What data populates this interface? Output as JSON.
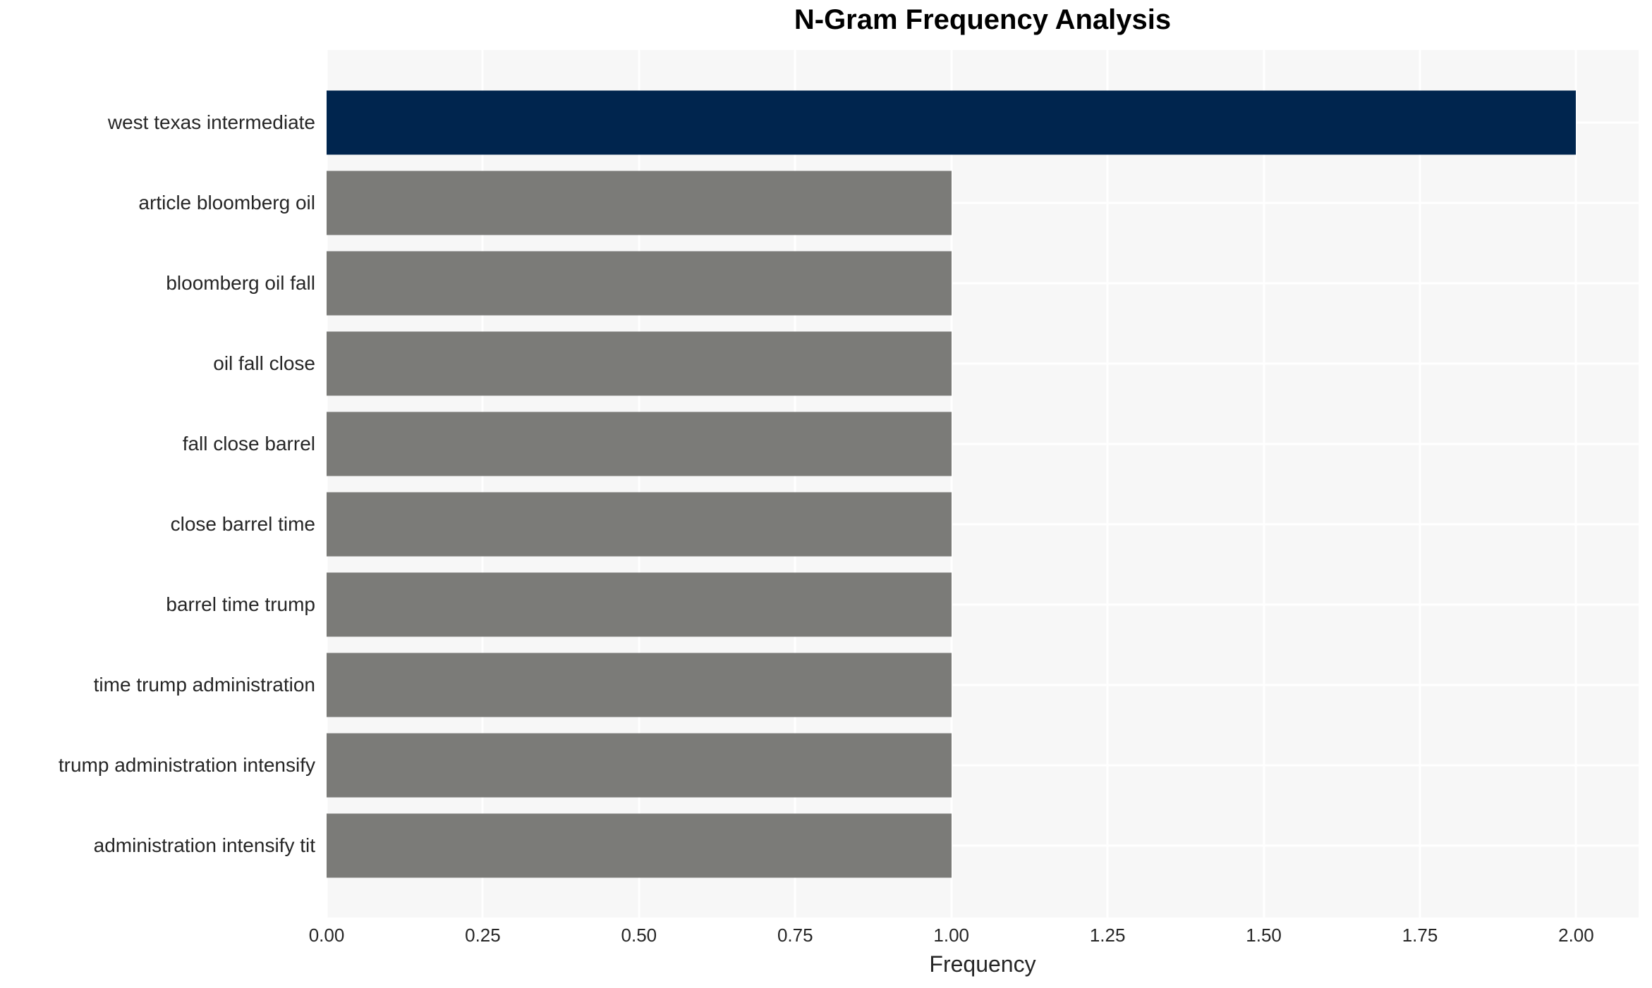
{
  "chart_data": {
    "type": "bar",
    "orientation": "horizontal",
    "title": "N-Gram Frequency Analysis",
    "xlabel": "Frequency",
    "ylabel": "",
    "categories": [
      "west texas intermediate",
      "article bloomberg oil",
      "bloomberg oil fall",
      "oil fall close",
      "fall close barrel",
      "close barrel time",
      "barrel time trump",
      "time trump administration",
      "trump administration intensify",
      "administration intensify tit"
    ],
    "values": [
      2,
      1,
      1,
      1,
      1,
      1,
      1,
      1,
      1,
      1
    ],
    "bar_colors": [
      "#00254e",
      "#7b7b78",
      "#7b7b78",
      "#7b7b78",
      "#7b7b78",
      "#7b7b78",
      "#7b7b78",
      "#7b7b78",
      "#7b7b78",
      "#7b7b78"
    ],
    "xlim": [
      0,
      2.1
    ],
    "xtick_labels": [
      "0.00",
      "0.25",
      "0.50",
      "0.75",
      "1.00",
      "1.25",
      "1.50",
      "1.75",
      "2.00"
    ],
    "grid": true,
    "legend_position": "none",
    "colors": {
      "highlight_bar": "#00254e",
      "default_bar": "#7b7b78",
      "panel_background": "#f7f7f7",
      "gridline": "#ffffff",
      "tick_text": "#262626",
      "title_text": "#000000"
    }
  }
}
